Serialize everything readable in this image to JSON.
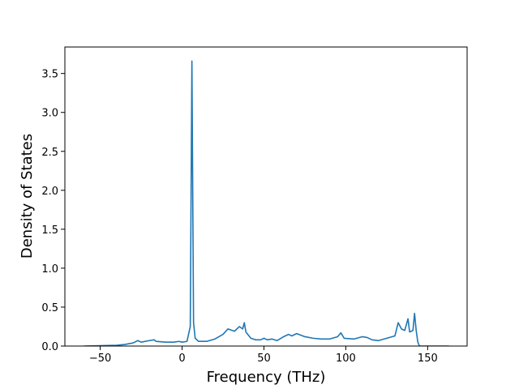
{
  "chart_data": {
    "type": "line",
    "xlabel": "Frequency (THz)",
    "ylabel": "Density of States",
    "x": [
      -60,
      -40,
      -35,
      -30,
      -27,
      -25,
      -20,
      -17,
      -16,
      -10,
      -5,
      -2,
      0,
      3,
      5,
      6,
      7,
      8,
      10,
      15,
      20,
      25,
      28,
      32,
      35,
      37,
      38,
      39,
      42,
      45,
      48,
      50,
      52,
      55,
      58,
      62,
      65,
      67,
      70,
      75,
      80,
      85,
      90,
      95,
      97,
      99,
      105,
      110,
      113,
      116,
      120,
      125,
      130,
      132,
      134,
      136,
      138,
      139,
      141,
      142,
      143,
      144,
      145,
      150,
      163
    ],
    "values": [
      0,
      0.01,
      0.02,
      0.04,
      0.07,
      0.05,
      0.07,
      0.08,
      0.06,
      0.05,
      0.05,
      0.06,
      0.05,
      0.06,
      0.25,
      3.66,
      0.3,
      0.1,
      0.06,
      0.06,
      0.09,
      0.15,
      0.22,
      0.19,
      0.25,
      0.22,
      0.3,
      0.18,
      0.1,
      0.08,
      0.08,
      0.1,
      0.08,
      0.09,
      0.07,
      0.12,
      0.15,
      0.13,
      0.16,
      0.12,
      0.1,
      0.09,
      0.09,
      0.12,
      0.17,
      0.1,
      0.09,
      0.12,
      0.11,
      0.08,
      0.07,
      0.1,
      0.13,
      0.3,
      0.22,
      0.2,
      0.35,
      0.18,
      0.2,
      0.42,
      0.2,
      0.05,
      0,
      0,
      0
    ],
    "color": "#1f77b4",
    "xlim": [
      -71.6,
      174.1
    ],
    "xticks": [
      {
        "value": -50,
        "label": "−50"
      },
      0,
      50,
      100,
      150
    ],
    "ylim": [
      0,
      3.84
    ],
    "yticks": [
      {
        "value": 0,
        "label": "0.0"
      },
      {
        "value": 0.5,
        "label": "0.5"
      },
      {
        "value": 1,
        "label": "1.0"
      },
      {
        "value": 1.5,
        "label": "1.5"
      },
      {
        "value": 2,
        "label": "2.0"
      },
      {
        "value": 2.5,
        "label": "2.5"
      },
      {
        "value": 3,
        "label": "3.0"
      },
      {
        "value": 3.5,
        "label": "3.5"
      }
    ]
  }
}
